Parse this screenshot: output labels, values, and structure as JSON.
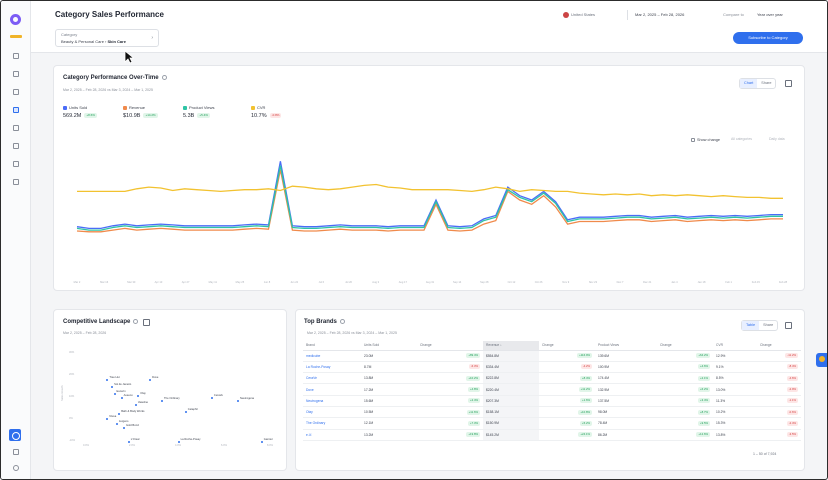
{
  "header": {
    "title": "Category Sales Performance",
    "category_label": "Category",
    "category_path": "Beauty & Personal Care ›",
    "category_leaf": "Skin Care",
    "country": "United States",
    "date_range": "Mar 2, 2025 – Feb 28, 2026",
    "compare_label": "Compare to",
    "compare_value": "Year over year",
    "subscribe": "Subscribe to Category"
  },
  "perf": {
    "title": "Category Performance Over-Time",
    "subtitle": "Mar 2, 2025 – Feb 28, 2026 vs Mar 3, 2024 – Mar 1, 2025",
    "toggle": [
      "Chart",
      "Share"
    ],
    "show_change": "Show change",
    "dd1": "All categories",
    "dd2": "Daily data",
    "metrics": [
      {
        "name": "Units Sold",
        "value": "569.2M",
        "change": "+8.6%",
        "dir": "up",
        "color": "#4a6cf7"
      },
      {
        "name": "Revenue",
        "value": "$10.9B",
        "change": "+14.2%",
        "dir": "up",
        "color": "#f08a4b"
      },
      {
        "name": "Product Views",
        "value": "5.3B",
        "change": "+5.4%",
        "dir": "up",
        "color": "#2ec4a5"
      },
      {
        "name": "CVR",
        "value": "10.7%",
        "change": "-0.8%",
        "dir": "down",
        "color": "#f2c230"
      }
    ],
    "xticks": [
      "Mar 2",
      "Mar 16",
      "Mar 30",
      "Apr 13",
      "Apr 27",
      "May 11",
      "May 25",
      "Jun 8",
      "Jun 22",
      "Jul 6",
      "Jul 20",
      "Aug 3",
      "Aug 17",
      "Aug 31",
      "Sep 14",
      "Sep 28",
      "Oct 12",
      "Oct 26",
      "Nov 9",
      "Nov 23",
      "Dec 7",
      "Dec 21",
      "Jan 4",
      "Jan 18",
      "Feb 1",
      "Feb 15",
      "Feb 28"
    ]
  },
  "chart_data": {
    "type": "line",
    "x_count": 60,
    "spike_points": [
      17,
      30,
      36
    ],
    "series": [
      {
        "name": "Units Sold",
        "color": "#4a6cf7",
        "values": [
          0.19,
          0.17,
          0.17,
          0.2,
          0.22,
          0.2,
          0.21,
          0.22,
          0.21,
          0.2,
          0.2,
          0.2,
          0.2,
          0.2,
          0.21,
          0.22,
          0.21,
          0.95,
          0.2,
          0.19,
          0.19,
          0.2,
          0.21,
          0.2,
          0.2,
          0.2,
          0.19,
          0.2,
          0.2,
          0.2,
          0.5,
          0.2,
          0.19,
          0.2,
          0.28,
          0.32,
          0.65,
          0.55,
          0.5,
          0.6,
          0.48,
          0.27,
          0.3,
          0.3,
          0.3,
          0.31,
          0.32,
          0.32,
          0.3,
          0.31,
          0.32,
          0.3,
          0.31,
          0.32,
          0.31,
          0.32,
          0.31,
          0.32,
          0.33,
          0.33
        ]
      },
      {
        "name": "Revenue",
        "color": "#f08a4b",
        "values": [
          0.14,
          0.13,
          0.13,
          0.15,
          0.17,
          0.15,
          0.16,
          0.17,
          0.16,
          0.15,
          0.15,
          0.15,
          0.15,
          0.15,
          0.16,
          0.17,
          0.16,
          0.85,
          0.15,
          0.14,
          0.14,
          0.15,
          0.16,
          0.15,
          0.15,
          0.15,
          0.14,
          0.15,
          0.15,
          0.15,
          0.45,
          0.15,
          0.14,
          0.15,
          0.22,
          0.26,
          0.6,
          0.5,
          0.45,
          0.55,
          0.42,
          0.22,
          0.25,
          0.25,
          0.25,
          0.26,
          0.27,
          0.27,
          0.25,
          0.26,
          0.27,
          0.25,
          0.26,
          0.27,
          0.26,
          0.27,
          0.26,
          0.27,
          0.28,
          0.28
        ]
      },
      {
        "name": "Product Views",
        "color": "#2ec4a5",
        "values": [
          0.17,
          0.15,
          0.15,
          0.18,
          0.2,
          0.18,
          0.19,
          0.2,
          0.19,
          0.18,
          0.18,
          0.18,
          0.18,
          0.18,
          0.19,
          0.2,
          0.19,
          0.9,
          0.18,
          0.17,
          0.17,
          0.18,
          0.19,
          0.18,
          0.18,
          0.18,
          0.17,
          0.18,
          0.18,
          0.18,
          0.48,
          0.18,
          0.17,
          0.18,
          0.26,
          0.3,
          0.62,
          0.53,
          0.48,
          0.58,
          0.46,
          0.25,
          0.28,
          0.28,
          0.28,
          0.29,
          0.3,
          0.3,
          0.28,
          0.29,
          0.3,
          0.28,
          0.29,
          0.3,
          0.29,
          0.3,
          0.29,
          0.3,
          0.31,
          0.31
        ]
      },
      {
        "name": "CVR",
        "color": "#f2c230",
        "values": [
          0.6,
          0.6,
          0.6,
          0.6,
          0.6,
          0.63,
          0.65,
          0.64,
          0.61,
          0.63,
          0.62,
          0.61,
          0.6,
          0.61,
          0.62,
          0.62,
          0.63,
          0.61,
          0.66,
          0.65,
          0.63,
          0.62,
          0.63,
          0.65,
          0.67,
          0.68,
          0.65,
          0.64,
          0.62,
          0.62,
          0.62,
          0.62,
          0.61,
          0.6,
          0.62,
          0.65,
          0.63,
          0.6,
          0.62,
          0.61,
          0.6,
          0.6,
          0.58,
          0.57,
          0.56,
          0.57,
          0.56,
          0.57,
          0.55,
          0.56,
          0.55,
          0.56,
          0.55,
          0.54,
          0.55,
          0.54,
          0.53,
          0.53,
          0.52,
          0.52
        ]
      }
    ]
  },
  "landscape": {
    "title": "Competitive Landscape",
    "subtitle": "Mar 2, 2025 – Feb 28, 2026",
    "ylabel": "Sales Growth",
    "yticks": [
      "30%",
      "20%",
      "10%",
      "0%",
      "-10%"
    ],
    "xticks": [
      "0.0%",
      "2.0%",
      "4.0%",
      "6.0%",
      "8.0%"
    ],
    "xmax": 8.0,
    "ymin": -10,
    "ymax": 30,
    "points": [
      {
        "label": "Tree Hut",
        "x": 0.9,
        "y": 17
      },
      {
        "label": "Sol de Janeiro",
        "x": 1.1,
        "y": 14
      },
      {
        "label": "Dove",
        "x": 2.7,
        "y": 17
      },
      {
        "label": "Eucerin",
        "x": 1.2,
        "y": 11
      },
      {
        "label": "Aveeno",
        "x": 1.5,
        "y": 9
      },
      {
        "label": "Olay",
        "x": 2.2,
        "y": 10
      },
      {
        "label": "The Ordinary",
        "x": 3.2,
        "y": 8
      },
      {
        "label": "CeraVe",
        "x": 5.3,
        "y": 9
      },
      {
        "label": "Neutrogena",
        "x": 6.4,
        "y": 8
      },
      {
        "label": "Vaseline",
        "x": 2.1,
        "y": 6
      },
      {
        "label": "Cetaphil",
        "x": 4.2,
        "y": 3
      },
      {
        "label": "Bath & Body Works",
        "x": 1.4,
        "y": 2
      },
      {
        "label": "Nivea",
        "x": 0.9,
        "y": 0
      },
      {
        "label": "Jergens",
        "x": 1.3,
        "y": -2
      },
      {
        "label": "Gold Bond",
        "x": 1.6,
        "y": -4
      },
      {
        "label": "L'Oreal",
        "x": 1.8,
        "y": -14
      },
      {
        "label": "La Roche-Posay",
        "x": 3.9,
        "y": -11
      },
      {
        "label": "Garnier",
        "x": 7.4,
        "y": -15
      }
    ]
  },
  "brands": {
    "title": "Top Brands",
    "subtitle": "Mar 2, 2025 – Feb 28, 2026 vs Mar 3, 2024 – Mar 1, 2025",
    "toggle": [
      "Table",
      "Share"
    ],
    "columns": [
      "Brand",
      "Units Sold",
      "Change",
      "Revenue ↓",
      "Change",
      "Product Views",
      "Change",
      "CVR",
      "Change"
    ],
    "rows": [
      {
        "brand": "medicube",
        "units": "23.0M",
        "uc": "+89.4%",
        "ucd": "up",
        "rev": "$554.8M",
        "rc": "+116.9%",
        "rcd": "up",
        "views": "139.6M",
        "vc": "+64.2%",
        "vcd": "up",
        "cvr": "12.9%",
        "cc": "-11.2%",
        "ccd": "down"
      },
      {
        "brand": "La Roche-Posay",
        "units": "8.7M",
        "uc": "-6.3%",
        "ucd": "down",
        "rev": "$334.4M",
        "rc": "-4.2%",
        "rcd": "down",
        "views": "100.9M",
        "vc": "+4.6%",
        "vcd": "up",
        "cvr": "9.1%",
        "cc": "-8.4%",
        "ccd": "down"
      },
      {
        "brand": "CeraVe",
        "units": "13.8M",
        "uc": "+10.2%",
        "ucd": "up",
        "rev": "$222.8M",
        "rc": "+8.4%",
        "rcd": "up",
        "views": "174.4M",
        "vc": "+2.1%",
        "vcd": "up",
        "cvr": "8.5%",
        "cc": "-4.6%",
        "ccd": "down"
      },
      {
        "brand": "Dove",
        "units": "17.2M",
        "uc": "+4.8%",
        "ucd": "up",
        "rev": "$220.4M",
        "rc": "+11.2%",
        "rcd": "up",
        "views": "132.9M",
        "vc": "+6.2%",
        "vcd": "up",
        "cvr": "13.0%",
        "cc": "-2.9%",
        "ccd": "down"
      },
      {
        "brand": "Neutrogena",
        "units": "15.6M",
        "uc": "+2.4%",
        "ucd": "up",
        "rev": "$207.3M",
        "rc": "+1.6%",
        "rcd": "up",
        "views": "137.5M",
        "vc": "+3.4%",
        "vcd": "up",
        "cvr": "11.3%",
        "cc": "-1.1%",
        "ccd": "down"
      },
      {
        "brand": "Olay",
        "units": "10.5M",
        "uc": "+11.6%",
        "ucd": "up",
        "rev": "$158.1M",
        "rc": "+10.8%",
        "rcd": "up",
        "views": "98.0M",
        "vc": "+8.7%",
        "vcd": "up",
        "cvr": "10.2%",
        "cc": "-0.6%",
        "ccd": "down"
      },
      {
        "brand": "The Ordinary",
        "units": "12.1M",
        "uc": "+7.3%",
        "ucd": "up",
        "rev": "$150.9M",
        "rc": "+5.2%",
        "rcd": "up",
        "views": "78.4M",
        "vc": "+9.5%",
        "vcd": "up",
        "cvr": "15.3%",
        "cc": "-2.4%",
        "ccd": "down"
      },
      {
        "brand": "e.l.f.",
        "units": "13.2M",
        "uc": "+19.8%",
        "ucd": "up",
        "rev": "$145.2M",
        "rc": "+24.1%",
        "rcd": "up",
        "views": "86.2M",
        "vc": "+12.6%",
        "vcd": "up",
        "cvr": "13.8%",
        "cc": "-3.5%",
        "ccd": "down"
      }
    ],
    "pager": "1 – 50 of 7,924"
  }
}
